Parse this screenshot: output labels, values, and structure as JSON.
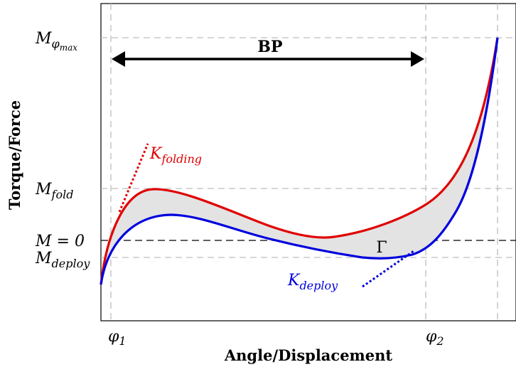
{
  "labels": {
    "x_axis": "Angle/Displacement",
    "y_axis": "Torque/Force",
    "m_phi_max_base": "M",
    "m_phi_max_sub": "φ",
    "m_phi_max_subsub": "max",
    "m_fold_base": "M",
    "m_fold_sub": "fold",
    "m_zero": "M = 0",
    "m_deploy_base": "M",
    "m_deploy_sub": "deploy",
    "phi1_base": "φ",
    "phi1_sub": "1",
    "phi2_base": "φ",
    "phi2_sub": "2",
    "bp": "BP",
    "gamma": "Γ",
    "k_folding_base": "K",
    "k_folding_sub": "folding",
    "k_deploy_base": "K",
    "k_deploy_sub": "deploy"
  },
  "colors": {
    "folding": "#e00000",
    "deploy": "#0000dd",
    "hysteresis_fill": "#e3e3e3",
    "guide": "#bdbdbd"
  }
}
